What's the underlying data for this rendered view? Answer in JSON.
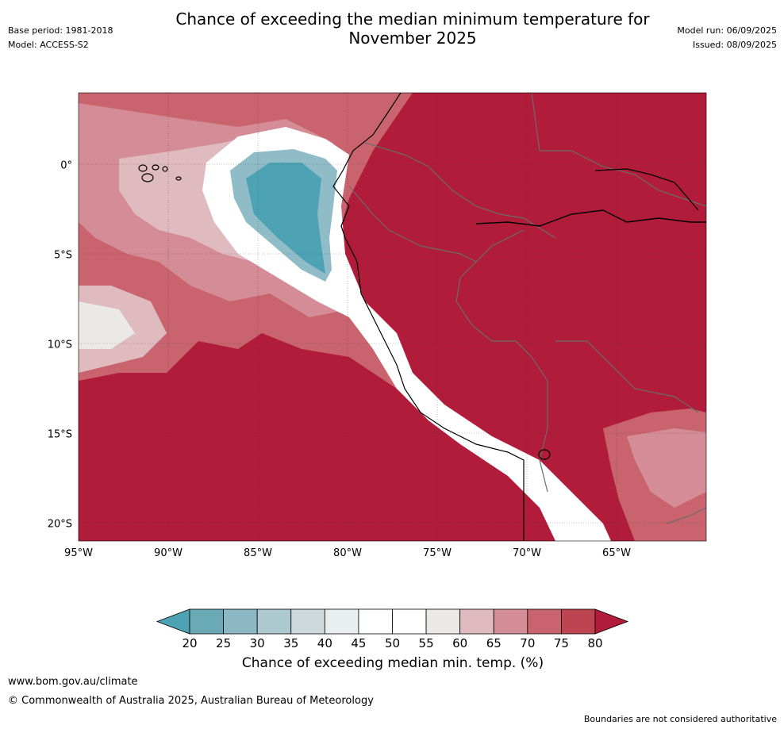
{
  "header": {
    "title": "Chance of exceeding the median minimum temperature for\nNovember 2025",
    "base_period": "Base period: 1981-2018",
    "model": "Model: ACCESS-S2",
    "model_run": "Model run: 06/09/2025",
    "issued": "Issued: 08/09/2025"
  },
  "map": {
    "lon_labels": [
      "95°W",
      "90°W",
      "85°W",
      "80°W",
      "75°W",
      "70°W",
      "65°W"
    ],
    "lat_labels": [
      "0°",
      "5°S",
      "10°S",
      "15°S",
      "20°S"
    ],
    "lon_values": [
      -95,
      -90,
      -85,
      -80,
      -75,
      -70,
      -65
    ],
    "lat_values": [
      0,
      -5,
      -10,
      -15,
      -20
    ],
    "extent": {
      "lon_min": -95,
      "lon_max": -60,
      "lat_min": -21,
      "lat_max": 4
    },
    "gridlines": true,
    "ocean_regions": [
      {
        "name": "very-low",
        "fill": "#4da3b3"
      },
      {
        "name": "low",
        "fill": "#8fbcc6"
      },
      {
        "name": "near-median",
        "fill": "#ffffff"
      },
      {
        "name": "moderate-high",
        "fill": "#d9b4ba"
      },
      {
        "name": "high",
        "fill": "#c9646f"
      },
      {
        "name": "very-high",
        "fill": "#b01c39"
      }
    ]
  },
  "colorbar": {
    "title": "Chance of exceeding median min. temp. (%)",
    "ticks": [
      "20",
      "25",
      "30",
      "35",
      "40",
      "45",
      "50",
      "55",
      "60",
      "65",
      "70",
      "75",
      "80"
    ],
    "under_color": "#4da3b3",
    "over_color": "#b01c39",
    "colors": [
      "#6aaab7",
      "#8cb8c3",
      "#abc9cf",
      "#cdd9dc",
      "#e9eff1",
      "#ffffff",
      "#ffffff",
      "#ebe9e8",
      "#dfbabf",
      "#d48d96",
      "#c8636f",
      "#be4451"
    ]
  },
  "footer": {
    "website": "www.bom.gov.au/climate",
    "copyright": "© Commonwealth of Australia 2025, Australian Bureau of Meteorology",
    "disclaimer": "Boundaries are not considered authoritative"
  }
}
